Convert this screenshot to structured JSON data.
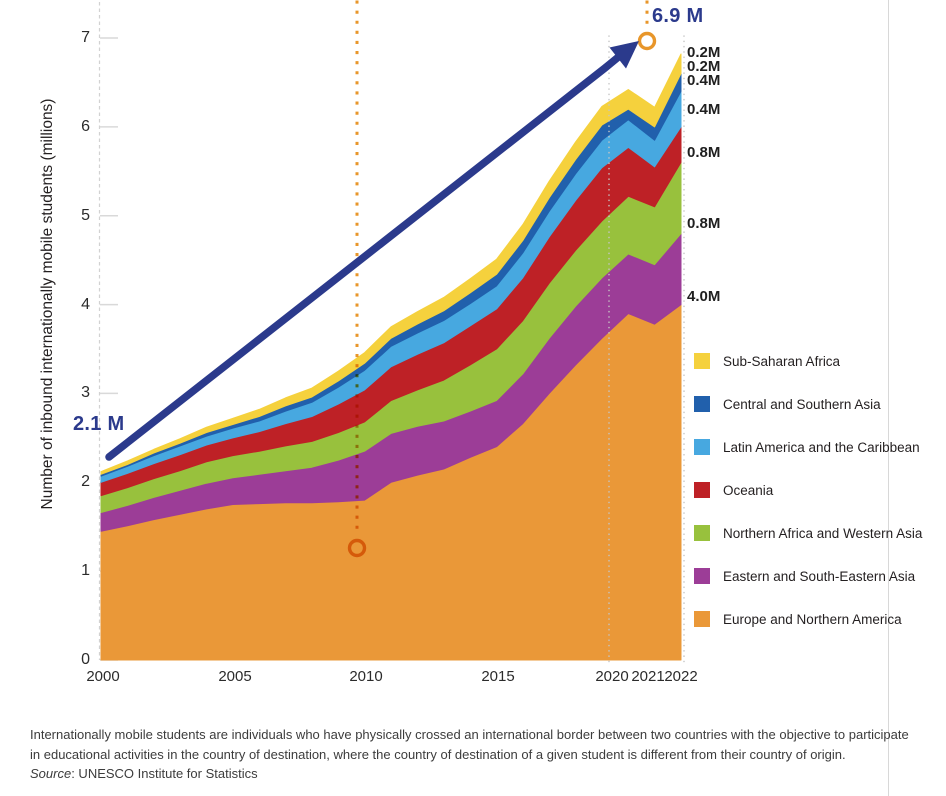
{
  "chart": {
    "y_axis_title": "Number of inbound internationally mobile students (millions)",
    "y_ticks": [
      "0",
      "1",
      "2",
      "3",
      "4",
      "5",
      "6",
      "7"
    ],
    "x_ticks": [
      "2000",
      "2005",
      "2010",
      "2015",
      "2020",
      "2021",
      "2022"
    ],
    "annotations": {
      "start_label": "2.1 M",
      "end_label": "6.9 M"
    },
    "value_callouts": [
      "0.2M",
      "0.2M",
      "0.4M",
      "0.4M",
      "0.8M",
      "0.8M",
      "4.0M"
    ]
  },
  "chart_data": {
    "type": "area",
    "stacked": true,
    "title": "",
    "xlabel": "",
    "ylabel": "Number of inbound internationally mobile students (millions)",
    "ylim": [
      0,
      7
    ],
    "x": [
      2000,
      2001,
      2002,
      2003,
      2004,
      2005,
      2006,
      2007,
      2008,
      2009,
      2010,
      2011,
      2012,
      2013,
      2014,
      2015,
      2016,
      2017,
      2018,
      2019,
      2020,
      2021,
      2022
    ],
    "series": [
      {
        "name": "Europe and Northern America",
        "color": "#EA9838",
        "values": [
          1.45,
          1.51,
          1.58,
          1.64,
          1.7,
          1.75,
          1.76,
          1.77,
          1.77,
          1.78,
          1.8,
          2.0,
          2.08,
          2.15,
          2.28,
          2.4,
          2.66,
          3.0,
          3.32,
          3.62,
          3.9,
          3.78,
          4.0
        ]
      },
      {
        "name": "Eastern and South-Eastern Asia",
        "color": "#9C3D97",
        "values": [
          0.21,
          0.23,
          0.25,
          0.27,
          0.29,
          0.3,
          0.33,
          0.36,
          0.4,
          0.47,
          0.55,
          0.55,
          0.55,
          0.54,
          0.52,
          0.52,
          0.56,
          0.62,
          0.66,
          0.68,
          0.67,
          0.67,
          0.8
        ]
      },
      {
        "name": "Northern Africa and Western Asia",
        "color": "#98C13D",
        "values": [
          0.19,
          0.2,
          0.21,
          0.22,
          0.24,
          0.25,
          0.26,
          0.28,
          0.29,
          0.31,
          0.33,
          0.37,
          0.41,
          0.46,
          0.52,
          0.58,
          0.6,
          0.62,
          0.63,
          0.64,
          0.65,
          0.65,
          0.8
        ]
      },
      {
        "name": "Oceania",
        "color": "#BE2126",
        "values": [
          0.15,
          0.16,
          0.17,
          0.18,
          0.19,
          0.2,
          0.22,
          0.25,
          0.28,
          0.32,
          0.36,
          0.38,
          0.4,
          0.42,
          0.44,
          0.45,
          0.48,
          0.52,
          0.56,
          0.6,
          0.55,
          0.45,
          0.4
        ]
      },
      {
        "name": "Latin America and the Caribbean",
        "color": "#47A8E0",
        "values": [
          0.07,
          0.08,
          0.09,
          0.1,
          0.1,
          0.11,
          0.12,
          0.14,
          0.16,
          0.19,
          0.22,
          0.23,
          0.24,
          0.25,
          0.25,
          0.26,
          0.28,
          0.29,
          0.3,
          0.31,
          0.31,
          0.3,
          0.4
        ]
      },
      {
        "name": "Central and Southern Asia",
        "color": "#2160AC",
        "values": [
          0.02,
          0.02,
          0.03,
          0.03,
          0.04,
          0.04,
          0.05,
          0.06,
          0.06,
          0.07,
          0.08,
          0.09,
          0.1,
          0.11,
          0.12,
          0.13,
          0.14,
          0.15,
          0.16,
          0.17,
          0.12,
          0.15,
          0.2
        ]
      },
      {
        "name": "Sub-Saharan Africa",
        "color": "#F5D13D",
        "values": [
          0.03,
          0.04,
          0.04,
          0.05,
          0.06,
          0.07,
          0.08,
          0.09,
          0.1,
          0.11,
          0.12,
          0.13,
          0.14,
          0.15,
          0.16,
          0.17,
          0.18,
          0.19,
          0.2,
          0.21,
          0.22,
          0.22,
          0.22
        ]
      }
    ],
    "annotations": {
      "start_value_label": "2.1 M",
      "end_value_label": "6.9 M",
      "band_value_labels_2022": [
        "0.2M",
        "0.2M",
        "0.4M",
        "0.4M",
        "0.8M",
        "0.8M",
        "4.0M"
      ],
      "highlight_years": [
        2010,
        2022
      ]
    },
    "legend_position": "right",
    "grid": false
  },
  "legend": {
    "items": [
      {
        "label": "Sub-Saharan Africa",
        "color": "#F5D13D"
      },
      {
        "label": "Central and Southern Asia",
        "color": "#2160AC"
      },
      {
        "label": "Latin America and the Caribbean",
        "color": "#47A8E0"
      },
      {
        "label": "Oceania",
        "color": "#BE2126"
      },
      {
        "label": "Northern Africa and Western Asia",
        "color": "#98C13D"
      },
      {
        "label": "Eastern and South-Eastern Asia",
        "color": "#9C3D97"
      },
      {
        "label": "Europe and Northern America",
        "color": "#EA9838"
      }
    ]
  },
  "colors": {
    "arrow_navy": "#2B3A8C",
    "marker_orange": "#E8962A",
    "guide_grey": "#C6C6C6"
  },
  "footnote": {
    "line1": "Internationally mobile students are individuals who have physically crossed an international border between two countries with the objective to participate",
    "line2": "in educational activities in the country of destination, where the country of destination of a given student is different from their country of origin."
  },
  "source": {
    "label": "Source",
    "text": ": UNESCO Institute for Statistics"
  }
}
